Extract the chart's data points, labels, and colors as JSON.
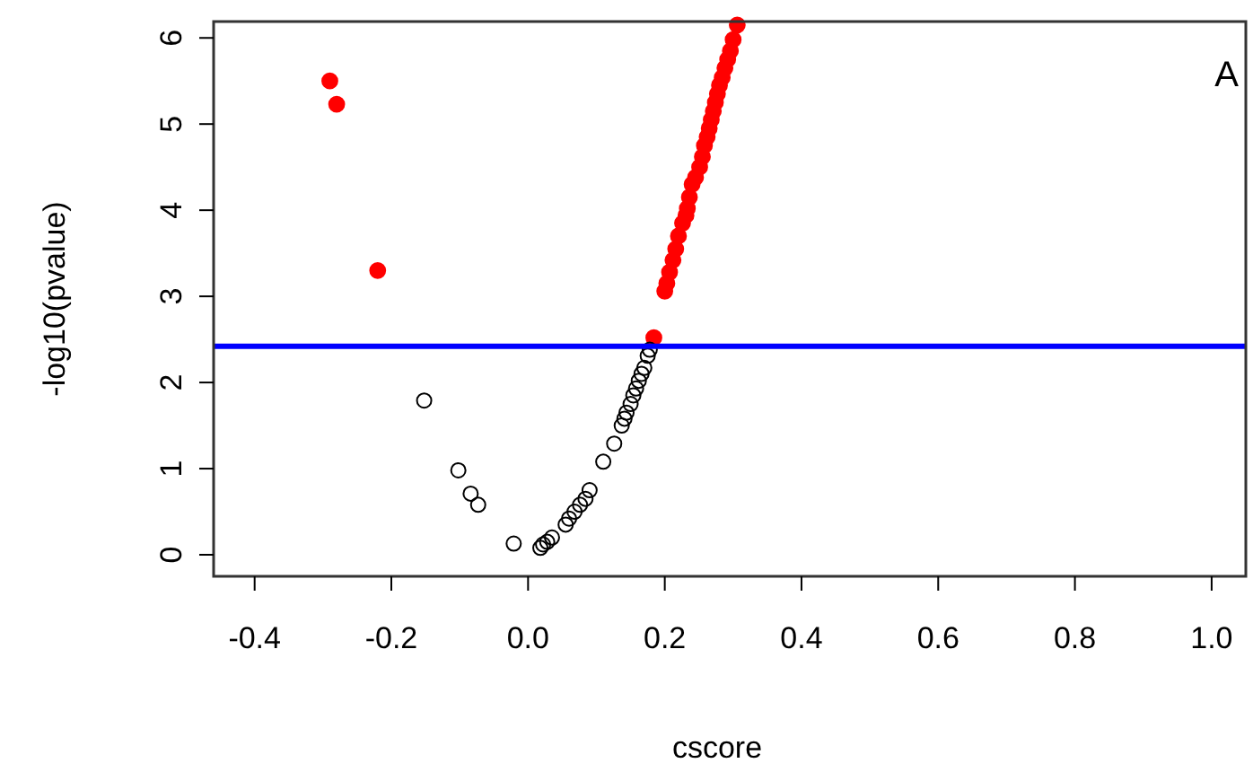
{
  "chart_data": {
    "type": "scatter",
    "xlabel": "cscore",
    "ylabel": "-log10(pvalue)",
    "xlim": [
      -0.46,
      1.05
    ],
    "ylim": [
      -0.25,
      6.19
    ],
    "xticks": [
      {
        "value": -0.4,
        "label": "-0.4"
      },
      {
        "value": -0.2,
        "label": "-0.2"
      },
      {
        "value": 0,
        "label": "0.0"
      },
      {
        "value": 0.2,
        "label": "0.2"
      },
      {
        "value": 0.4,
        "label": "0.4"
      },
      {
        "value": 0.6,
        "label": "0.6"
      },
      {
        "value": 0.8,
        "label": "0.8"
      },
      {
        "value": 1,
        "label": "1.0"
      }
    ],
    "yticks": [
      0,
      1,
      2,
      3,
      4,
      5,
      6
    ],
    "grid": false,
    "series": [
      {
        "color": "#ff0000",
        "marker": "circle",
        "x": [
          -0.29,
          -0.28,
          -0.22,
          0.184,
          0.2,
          0.203,
          0.207,
          0.212,
          0.216,
          0.22,
          0.226,
          0.231,
          0.233,
          0.236,
          0.24,
          0.245,
          0.251,
          0.255,
          0.258,
          0.262,
          0.265,
          0.268,
          0.271,
          0.274,
          0.277,
          0.28,
          0.284,
          0.288,
          0.292,
          0.296,
          0.3,
          0.306
        ],
        "values": [
          5.5,
          5.23,
          3.3,
          2.52,
          3.06,
          3.15,
          3.28,
          3.42,
          3.55,
          3.7,
          3.85,
          3.94,
          4.02,
          4.15,
          4.3,
          4.38,
          4.5,
          4.62,
          4.75,
          4.85,
          4.95,
          5.05,
          5.15,
          5.25,
          5.35,
          5.45,
          5.54,
          5.65,
          5.75,
          5.85,
          5.98,
          6.15
        ]
      },
      {
        "color": "#000000",
        "marker": "circle-open",
        "x": [
          -0.152,
          -0.102,
          -0.084,
          -0.073,
          -0.021,
          0.018,
          0.022,
          0.028,
          0.035,
          0.055,
          0.06,
          0.068,
          0.076,
          0.084,
          0.09,
          0.11,
          0.126,
          0.137,
          0.141,
          0.144,
          0.15,
          0.154,
          0.158,
          0.162,
          0.166,
          0.17,
          0.175,
          0.178
        ],
        "values": [
          1.79,
          0.98,
          0.71,
          0.58,
          0.13,
          0.08,
          0.12,
          0.15,
          0.2,
          0.35,
          0.42,
          0.5,
          0.58,
          0.65,
          0.75,
          1.08,
          1.29,
          1.5,
          1.58,
          1.65,
          1.75,
          1.85,
          1.93,
          2.02,
          2.1,
          2.17,
          2.31,
          2.38
        ]
      }
    ],
    "ref_lines": [
      {
        "axis": "y",
        "value": 2.42,
        "color": "#0000ff",
        "line_style": "solid"
      }
    ],
    "annotations": [
      "A"
    ]
  }
}
